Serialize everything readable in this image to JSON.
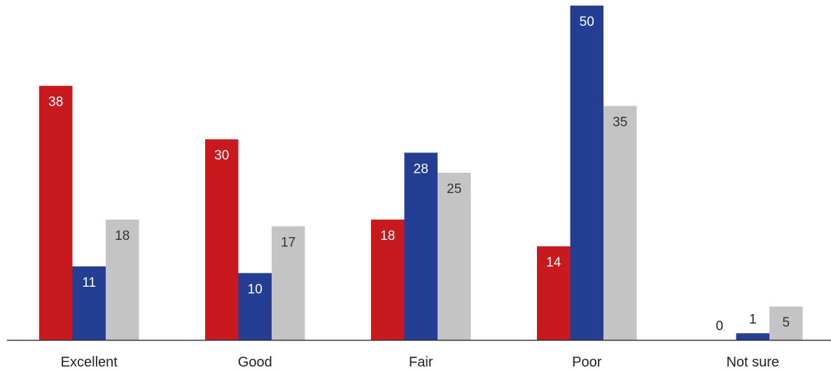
{
  "chart_data": {
    "type": "bar",
    "title": "",
    "xlabel": "",
    "ylabel": "",
    "ylim": [
      0,
      50
    ],
    "grid": false,
    "legend": "none",
    "categories": [
      "Excellent",
      "Good",
      "Fair",
      "Poor",
      "Not sure"
    ],
    "series": [
      {
        "values": [
          38,
          30,
          18,
          14,
          0
        ],
        "color": "#c8191e"
      },
      {
        "values": [
          11,
          10,
          28,
          50,
          1
        ],
        "color": "#233e92"
      },
      {
        "values": [
          18,
          17,
          25,
          35,
          5
        ],
        "color": "#c4c4c4"
      }
    ],
    "label_colors": {
      "inside_dark": "#ffffff",
      "inside_light": "#333333",
      "outside": "#222222"
    },
    "axis_color": "#333333"
  }
}
